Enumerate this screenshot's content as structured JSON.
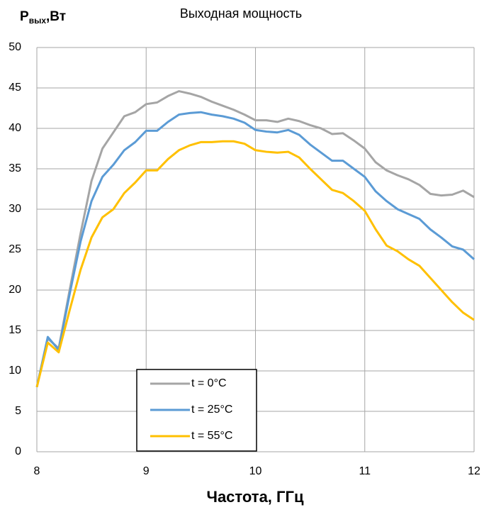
{
  "chart_data": {
    "type": "line",
    "title": "Выходная мощность",
    "ylabel_parts": [
      "P",
      "вых",
      ",Вт"
    ],
    "xlabel": "Частота, ГГц",
    "x": [
      8.0,
      8.1,
      8.2,
      8.3,
      8.4,
      8.5,
      8.6,
      8.7,
      8.8,
      8.9,
      9.0,
      9.1,
      9.2,
      9.3,
      9.4,
      9.5,
      9.6,
      9.7,
      9.8,
      9.9,
      10.0,
      10.1,
      10.2,
      10.3,
      10.4,
      10.5,
      10.6,
      10.7,
      10.8,
      10.9,
      11.0,
      11.1,
      11.2,
      11.3,
      11.4,
      11.5,
      11.6,
      11.7,
      11.8,
      11.9,
      12.0
    ],
    "series": [
      {
        "name": "t = 0°C",
        "color": "#a5a5a5",
        "values": [
          8,
          14,
          12.8,
          20,
          27,
          33.5,
          37.5,
          39.5,
          41.5,
          42,
          43,
          43.2,
          44,
          44.6,
          44.3,
          43.9,
          43.3,
          42.8,
          42.3,
          41.7,
          41,
          41,
          40.8,
          41.2,
          40.9,
          40.4,
          40,
          39.3,
          39.4,
          38.5,
          37.5,
          35.8,
          34.8,
          34.2,
          33.7,
          33,
          31.9,
          31.7,
          31.8,
          32.3,
          31.5
        ]
      },
      {
        "name": "t = 25°C",
        "color": "#5b9bd5",
        "values": [
          8,
          14.2,
          12.6,
          19.5,
          26,
          31,
          34,
          35.5,
          37.3,
          38.3,
          39.7,
          39.7,
          40.8,
          41.7,
          41.9,
          42,
          41.7,
          41.5,
          41.2,
          40.7,
          39.8,
          39.6,
          39.5,
          39.8,
          39.2,
          38,
          37,
          36,
          36,
          35,
          34,
          32.2,
          31,
          30,
          29.4,
          28.8,
          27.5,
          26.5,
          25.4,
          25,
          23.8
        ]
      },
      {
        "name": "t = 55°C",
        "color": "#ffc000",
        "values": [
          8,
          13.5,
          12.3,
          17.5,
          22.5,
          26.5,
          29,
          30,
          32,
          33.3,
          34.8,
          34.8,
          36.2,
          37.3,
          37.9,
          38.3,
          38.3,
          38.4,
          38.4,
          38.1,
          37.3,
          37.1,
          37,
          37.1,
          36.4,
          35,
          33.7,
          32.4,
          32,
          31,
          29.8,
          27.5,
          25.5,
          24.8,
          23.8,
          23,
          21.5,
          20,
          18.5,
          17.2,
          16.3
        ]
      }
    ],
    "xlim": [
      8,
      12
    ],
    "xticks": [
      8,
      9,
      10,
      11,
      12
    ],
    "ylim": [
      0,
      50
    ],
    "yticks": [
      0,
      5,
      10,
      15,
      20,
      25,
      30,
      35,
      40,
      45,
      50
    ],
    "grid": true,
    "legend": "lower left"
  }
}
